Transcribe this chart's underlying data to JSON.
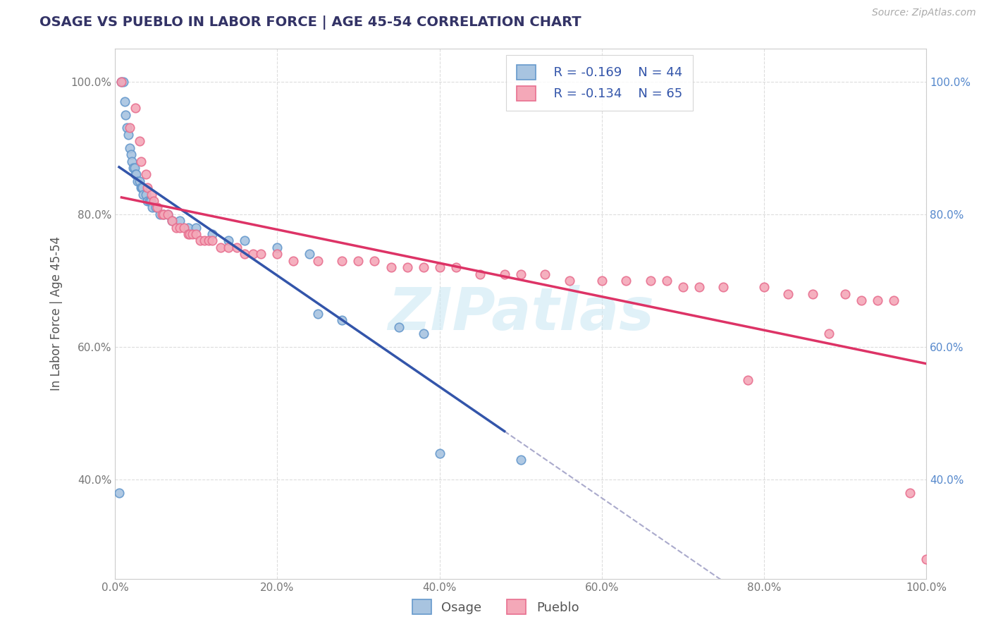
{
  "title": "OSAGE VS PUEBLO IN LABOR FORCE | AGE 45-54 CORRELATION CHART",
  "source_text": "Source: ZipAtlas.com",
  "ylabel": "In Labor Force | Age 45-54",
  "xlim": [
    0.0,
    1.0
  ],
  "ylim": [
    0.25,
    1.05
  ],
  "ytick_labels": [
    "40.0%",
    "60.0%",
    "80.0%",
    "100.0%"
  ],
  "ytick_values": [
    0.4,
    0.6,
    0.8,
    1.0
  ],
  "xtick_labels": [
    "0.0%",
    "20.0%",
    "40.0%",
    "60.0%",
    "80.0%",
    "100.0%"
  ],
  "xtick_values": [
    0.0,
    0.2,
    0.4,
    0.6,
    0.8,
    1.0
  ],
  "legend_r_osage": "R = -0.169",
  "legend_n_osage": "N = 44",
  "legend_r_pueblo": "R = -0.134",
  "legend_n_pueblo": "N = 65",
  "osage_color": "#a8c4e0",
  "pueblo_color": "#f4a8b8",
  "osage_edge": "#6699cc",
  "pueblo_edge": "#e87090",
  "trend_osage_color": "#3355aa",
  "trend_pueblo_color": "#dd3366",
  "trend_dashed_color": "#aaaacc",
  "background_color": "#ffffff",
  "grid_color": "#dddddd",
  "title_color": "#333366",
  "legend_text_color": "#3355aa",
  "marker_size": 9,
  "osage_x": [
    0.005,
    0.008,
    0.01,
    0.012,
    0.013,
    0.015,
    0.016,
    0.018,
    0.02,
    0.021,
    0.022,
    0.024,
    0.025,
    0.026,
    0.028,
    0.03,
    0.032,
    0.033,
    0.034,
    0.035,
    0.038,
    0.04,
    0.042,
    0.044,
    0.046,
    0.05,
    0.055,
    0.06,
    0.065,
    0.07,
    0.08,
    0.09,
    0.1,
    0.12,
    0.14,
    0.16,
    0.2,
    0.24,
    0.25,
    0.28,
    0.35,
    0.38,
    0.4,
    0.5
  ],
  "osage_y": [
    0.38,
    1.0,
    1.0,
    0.97,
    0.95,
    0.93,
    0.92,
    0.9,
    0.89,
    0.88,
    0.87,
    0.87,
    0.86,
    0.86,
    0.85,
    0.85,
    0.84,
    0.84,
    0.84,
    0.83,
    0.83,
    0.82,
    0.82,
    0.82,
    0.81,
    0.81,
    0.8,
    0.8,
    0.8,
    0.79,
    0.79,
    0.78,
    0.78,
    0.77,
    0.76,
    0.76,
    0.75,
    0.74,
    0.65,
    0.64,
    0.63,
    0.62,
    0.44,
    0.43
  ],
  "pueblo_x": [
    0.008,
    0.018,
    0.025,
    0.03,
    0.032,
    0.038,
    0.04,
    0.045,
    0.048,
    0.052,
    0.058,
    0.06,
    0.065,
    0.07,
    0.075,
    0.08,
    0.085,
    0.09,
    0.092,
    0.095,
    0.1,
    0.105,
    0.11,
    0.115,
    0.12,
    0.13,
    0.14,
    0.15,
    0.16,
    0.17,
    0.18,
    0.2,
    0.22,
    0.25,
    0.28,
    0.3,
    0.32,
    0.34,
    0.36,
    0.38,
    0.4,
    0.42,
    0.45,
    0.48,
    0.5,
    0.53,
    0.56,
    0.6,
    0.63,
    0.66,
    0.68,
    0.7,
    0.72,
    0.75,
    0.78,
    0.8,
    0.83,
    0.86,
    0.88,
    0.9,
    0.92,
    0.94,
    0.96,
    0.98,
    1.0
  ],
  "pueblo_y": [
    1.0,
    0.93,
    0.96,
    0.91,
    0.88,
    0.86,
    0.84,
    0.83,
    0.82,
    0.81,
    0.8,
    0.8,
    0.8,
    0.79,
    0.78,
    0.78,
    0.78,
    0.77,
    0.77,
    0.77,
    0.77,
    0.76,
    0.76,
    0.76,
    0.76,
    0.75,
    0.75,
    0.75,
    0.74,
    0.74,
    0.74,
    0.74,
    0.73,
    0.73,
    0.73,
    0.73,
    0.73,
    0.72,
    0.72,
    0.72,
    0.72,
    0.72,
    0.71,
    0.71,
    0.71,
    0.71,
    0.7,
    0.7,
    0.7,
    0.7,
    0.7,
    0.69,
    0.69,
    0.69,
    0.55,
    0.69,
    0.68,
    0.68,
    0.62,
    0.68,
    0.67,
    0.67,
    0.67,
    0.38,
    0.28
  ]
}
